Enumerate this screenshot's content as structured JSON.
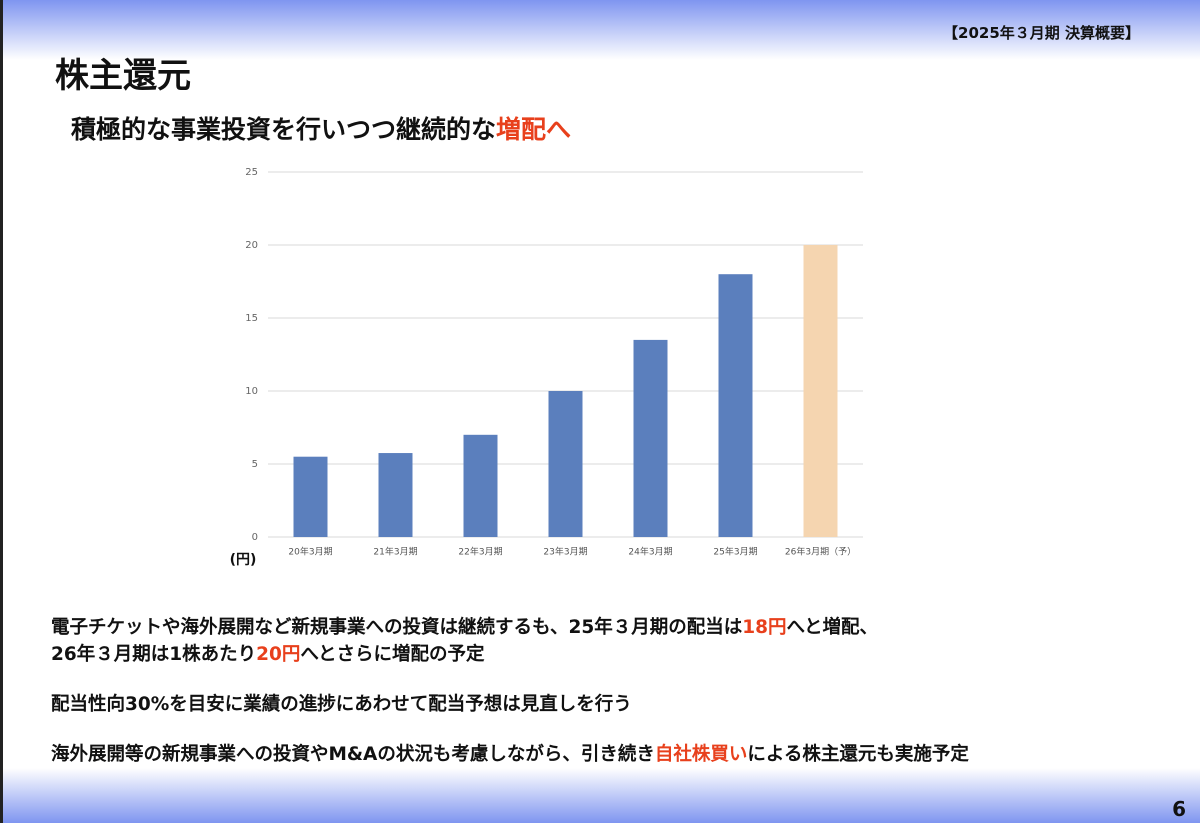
{
  "header": {
    "period": "【2025年３月期 決算概要】",
    "title": "株主還元",
    "subtitle": [
      {
        "text": "積極的な事業投資を行いつつ継続的な",
        "color": "#111111"
      },
      {
        "text": "増配へ",
        "color": "#e8401c"
      }
    ]
  },
  "chart_data": {
    "type": "bar",
    "y_unit": "(円)",
    "categories": [
      "20年3月期",
      "21年3月期",
      "22年3月期",
      "23年3月期",
      "24年3月期",
      "25年3月期",
      "26年3月期（予）"
    ],
    "values": [
      5.5,
      5.75,
      7,
      10,
      13.5,
      18,
      20
    ],
    "colors": [
      "#5b7fbd",
      "#5b7fbd",
      "#5b7fbd",
      "#5b7fbd",
      "#5b7fbd",
      "#5b7fbd",
      "#f5d5b0"
    ],
    "ylim": [
      0,
      25
    ],
    "yticks": [
      0,
      5,
      10,
      15,
      20,
      25
    ],
    "grid": true
  },
  "body": {
    "paragraphs": [
      {
        "lines": [
          [
            {
              "text": "電子チケットや海外展開など新規事業への投資は継続するも、25年３月期の配当は",
              "color": "#111111"
            },
            {
              "text": "18円",
              "color": "#e8401c"
            },
            {
              "text": "へと増配、",
              "color": "#111111"
            }
          ],
          [
            {
              "text": "26年３月期は1株あたり",
              "color": "#111111"
            },
            {
              "text": "20円",
              "color": "#e8401c"
            },
            {
              "text": "へとさらに増配の予定",
              "color": "#111111"
            }
          ]
        ]
      },
      {
        "lines": [
          [
            {
              "text": "配当性向30%を目安に業績の進捗にあわせて配当予想は見直しを行う",
              "color": "#111111"
            }
          ]
        ]
      },
      {
        "lines": [
          [
            {
              "text": "海外展開等の新規事業への投資やM&Aの状況も考慮しながら、引き続き",
              "color": "#111111"
            },
            {
              "text": "自社株買い",
              "color": "#e8401c"
            },
            {
              "text": "による株主還元も実施予定",
              "color": "#111111"
            }
          ]
        ]
      }
    ]
  },
  "page_number": "6"
}
